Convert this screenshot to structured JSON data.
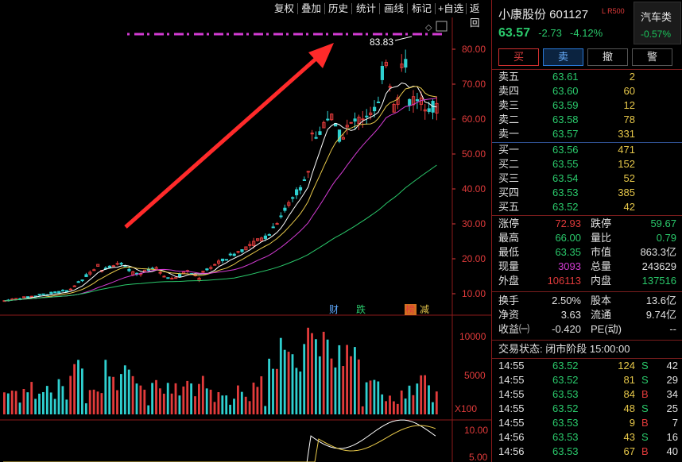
{
  "toolbar": {
    "buttons": [
      "复权",
      "叠加",
      "历史",
      "统计",
      "画线",
      "标记",
      "+自选",
      "返回"
    ]
  },
  "chart": {
    "price_axis": [
      "80.00",
      "70.00",
      "60.00",
      "50.00",
      "40.00",
      "30.00",
      "20.00",
      "10.00"
    ],
    "volume_axis": [
      "10000",
      "5000",
      "X100"
    ],
    "indicator_axis": [
      "10.00",
      "5.00"
    ],
    "high_marker": "83.83",
    "event_tags": [
      "财",
      "跌",
      "榜",
      "减"
    ]
  },
  "stock": {
    "name_code": "小康股份 601127",
    "badge": "L R500",
    "price": "63.57",
    "change": "-2.73",
    "change_pct": "-4.12%"
  },
  "sector": {
    "name": "汽车类",
    "change": "-0.57%"
  },
  "buttons": {
    "buy": "买",
    "sell": "卖",
    "cancel": "撤",
    "alert": "警"
  },
  "asks": [
    {
      "label": "卖五",
      "price": "63.61",
      "vol": "2"
    },
    {
      "label": "卖四",
      "price": "63.60",
      "vol": "60"
    },
    {
      "label": "卖三",
      "price": "63.59",
      "vol": "12"
    },
    {
      "label": "卖二",
      "price": "63.58",
      "vol": "78"
    },
    {
      "label": "卖一",
      "price": "63.57",
      "vol": "331"
    }
  ],
  "bids": [
    {
      "label": "买一",
      "price": "63.56",
      "vol": "471"
    },
    {
      "label": "买二",
      "price": "63.55",
      "vol": "152"
    },
    {
      "label": "买三",
      "price": "63.54",
      "vol": "52"
    },
    {
      "label": "买四",
      "price": "63.53",
      "vol": "385"
    },
    {
      "label": "买五",
      "price": "63.52",
      "vol": "42"
    }
  ],
  "stats": {
    "limit_up_label": "涨停",
    "limit_up": "72.93",
    "limit_down_label": "跌停",
    "limit_down": "59.67",
    "high_label": "最高",
    "high": "66.00",
    "vol_ratio_label": "量比",
    "vol_ratio": "0.79",
    "low_label": "最低",
    "low": "63.35",
    "mkt_cap_label": "市值",
    "mkt_cap": "863.3亿",
    "cur_vol_label": "现量",
    "cur_vol": "3093",
    "total_vol_label": "总量",
    "total_vol": "243629",
    "outer_label": "外盘",
    "outer": "106113",
    "inner_label": "内盘",
    "inner": "137516",
    "turnover_label": "换手",
    "turnover": "2.50%",
    "equity_label": "股本",
    "equity": "13.6亿",
    "nav_label": "净资",
    "nav": "3.63",
    "float_label": "流通",
    "float": "9.74亿",
    "eps_label": "收益㈠",
    "eps": "-0.420",
    "pe_label": "PE(动)",
    "pe": "--"
  },
  "status": {
    "text": "交易状态: 闭市阶段 15:00:00"
  },
  "ticks": [
    {
      "time": "14:55",
      "price": "63.52",
      "vol": "124",
      "flag": "S",
      "num": "42"
    },
    {
      "time": "14:55",
      "price": "63.52",
      "vol": "81",
      "flag": "S",
      "num": "29"
    },
    {
      "time": "14:55",
      "price": "63.53",
      "vol": "84",
      "flag": "B",
      "num": "34"
    },
    {
      "time": "14:55",
      "price": "63.52",
      "vol": "48",
      "flag": "S",
      "num": "25"
    },
    {
      "time": "14:55",
      "price": "63.53",
      "vol": "9",
      "flag": "B",
      "num": "7"
    },
    {
      "time": "14:56",
      "price": "63.53",
      "vol": "43",
      "flag": "S",
      "num": "16"
    },
    {
      "time": "14:56",
      "price": "63.53",
      "vol": "67",
      "flag": "B",
      "num": "40"
    }
  ],
  "colors": {
    "up": "#e23b3b",
    "down": "#2ac96b",
    "arrow": "#ff2a2a",
    "magenta": "#d23bd2"
  }
}
